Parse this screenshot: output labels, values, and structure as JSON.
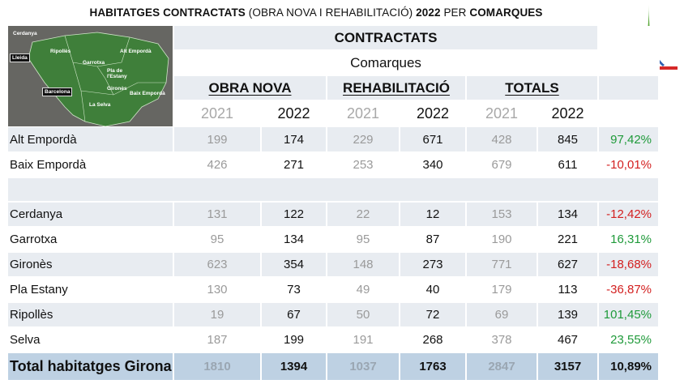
{
  "title": {
    "part1": "HABITATGES CONTRACTATS",
    "part2": "(OBRA NOVA I  REHABILITACIÓ)",
    "part3": "2022",
    "part4": "PER",
    "part5": "COMARQUES"
  },
  "map": {
    "labels": [
      "Cerdanya",
      "Ripollès",
      "Alt Empordà",
      "Garrotxa",
      "Pla de l'Estany",
      "Gironès",
      "Baix Empordà",
      "La Selva"
    ],
    "boxes": [
      "Lleida",
      "Barcelona"
    ]
  },
  "header": {
    "main": "CONTRACTATS",
    "sub": "Comarques",
    "groups": [
      "OBRA NOVA",
      "REHABILITACIÓ",
      "TOTALS"
    ],
    "years": [
      "2021",
      "2022",
      "2021",
      "2022",
      "2021",
      "2022"
    ]
  },
  "rows": [
    {
      "name": "Alt Empordà",
      "vals": [
        "199",
        "174",
        "229",
        "671",
        "428",
        "845"
      ],
      "pct": "97,42%",
      "pct_sign": "pos"
    },
    {
      "name": "Baix Empordà",
      "vals": [
        "426",
        "271",
        "253",
        "340",
        "679",
        "611"
      ],
      "pct": "-10,01%",
      "pct_sign": "neg"
    },
    {
      "name": "Cerdanya",
      "vals": [
        "131",
        "122",
        "22",
        "12",
        "153",
        "134"
      ],
      "pct": "-12,42%",
      "pct_sign": "neg"
    },
    {
      "name": "Garrotxa",
      "vals": [
        "95",
        "134",
        "95",
        "87",
        "190",
        "221"
      ],
      "pct": "16,31%",
      "pct_sign": "pos"
    },
    {
      "name": "Gironès",
      "vals": [
        "623",
        "354",
        "148",
        "273",
        "771",
        "627"
      ],
      "pct": "-18,68%",
      "pct_sign": "neg"
    },
    {
      "name": "Pla Estany",
      "vals": [
        "130",
        "73",
        "49",
        "40",
        "179",
        "113"
      ],
      "pct": "-36,87%",
      "pct_sign": "neg"
    },
    {
      "name": "Ripollès",
      "vals": [
        "19",
        "67",
        "50",
        "72",
        "69",
        "139"
      ],
      "pct": "101,45%",
      "pct_sign": "pos"
    },
    {
      "name": "Selva",
      "vals": [
        "187",
        "199",
        "191",
        "268",
        "378",
        "467"
      ],
      "pct": "23,55%",
      "pct_sign": "pos"
    }
  ],
  "total": {
    "name": "Total  habitatges Girona",
    "vals": [
      "1810",
      "1394",
      "1037",
      "1763",
      "2847",
      "3157"
    ],
    "pct": "10,89%"
  },
  "colors": {
    "positive": "#1f9a3a",
    "negative": "#d32020",
    "shade": "#e8ecf1",
    "total_row": "#bed1e3"
  }
}
